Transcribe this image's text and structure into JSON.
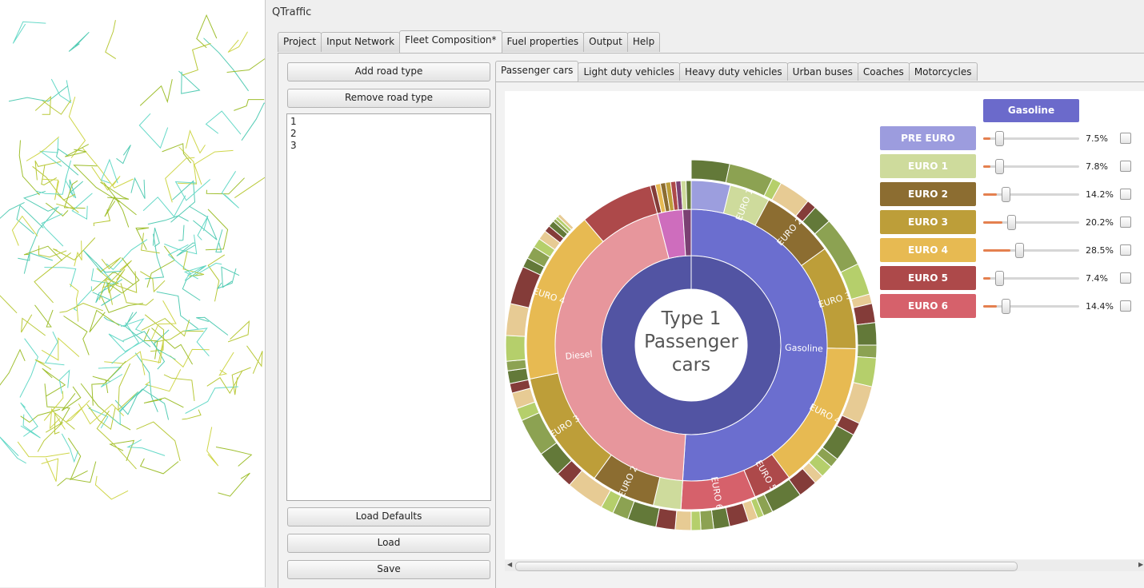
{
  "window_title": "QTraffic",
  "main_tabs": [
    "Project",
    "Input Network",
    "Fleet Composition*",
    "Fuel properties",
    "Output",
    "Help"
  ],
  "left_buttons": {
    "add_road_type": "Add road type",
    "remove_road_type": "Remove road type",
    "load_defaults": "Load Defaults",
    "load": "Load",
    "save": "Save"
  },
  "road_types": [
    "1",
    "2",
    "3"
  ],
  "vehicle_tabs": [
    "Passenger cars",
    "Light duty vehicles",
    "Heavy duty vehicles",
    "Urban buses",
    "Coaches",
    "Motorcycles"
  ],
  "chart_center": {
    "line1": "Type 1",
    "line2": "Passenger",
    "line3": "cars"
  },
  "fuel_selector": "Gasoline",
  "euro_classes": [
    {
      "label": "PRE EURO",
      "value": 7.5,
      "pct": "7.5%",
      "color": "#9c9cde"
    },
    {
      "label": "EURO 1",
      "value": 7.8,
      "pct": "7.8%",
      "color": "#cedb9c"
    },
    {
      "label": "EURO 2",
      "value": 14.2,
      "pct": "14.2%",
      "color": "#8c6d31"
    },
    {
      "label": "EURO 3",
      "value": 20.2,
      "pct": "20.2%",
      "color": "#bd9e39"
    },
    {
      "label": "EURO 4",
      "value": 28.5,
      "pct": "28.5%",
      "color": "#e7ba52"
    },
    {
      "label": "EURO 5",
      "value": 7.4,
      "pct": "7.4%",
      "color": "#ad494a"
    },
    {
      "label": "EURO 6",
      "value": 14.4,
      "pct": "14.4%",
      "color": "#d6616b"
    }
  ],
  "slider_max": 100,
  "chart_data": {
    "type": "sunburst",
    "center_label": "Type 1 Passenger cars",
    "inner_ring": [
      {
        "name": "Gasoline",
        "share": 0.51,
        "color": "#6b6ecf"
      },
      {
        "name": "Diesel",
        "share": 0.45,
        "color": "#e7969c"
      },
      {
        "name": "",
        "share": 0.03,
        "color": "#ce6dbd"
      },
      {
        "name": "",
        "share": 0.01,
        "color": "#7b4173"
      }
    ],
    "gasoline_euro_ring": [
      {
        "name": "",
        "value": 7.5,
        "color": "#9c9ede"
      },
      {
        "name": "EURO 1",
        "value": 7.8,
        "color": "#cedb9c"
      },
      {
        "name": "EURO 2",
        "value": 14.2,
        "color": "#8c6d31"
      },
      {
        "name": "EURO 3",
        "value": 20.2,
        "color": "#bd9e39"
      },
      {
        "name": "EURO 4",
        "value": 28.5,
        "color": "#e7ba52"
      },
      {
        "name": "EURO 5",
        "value": 7.4,
        "color": "#ad494a"
      },
      {
        "name": "EURO 6",
        "value": 14.4,
        "color": "#d6616b"
      }
    ],
    "diesel_euro_ring": [
      {
        "name": "",
        "value": 6.0,
        "color": "#cedb9c"
      },
      {
        "name": "EURO 2",
        "value": 14.0,
        "color": "#8c6d31"
      },
      {
        "name": "EURO 3",
        "value": 26.0,
        "color": "#bd9e39"
      },
      {
        "name": "EURO 4",
        "value": 38.0,
        "color": "#e7ba52"
      },
      {
        "name": "",
        "value": 16.0,
        "color": "#ad494a"
      }
    ],
    "outer_ring_labels": [
      "EURO 1",
      "EURO 2",
      "EURO 3",
      "EURO 4",
      "EURO 5",
      "EURO 6"
    ]
  }
}
